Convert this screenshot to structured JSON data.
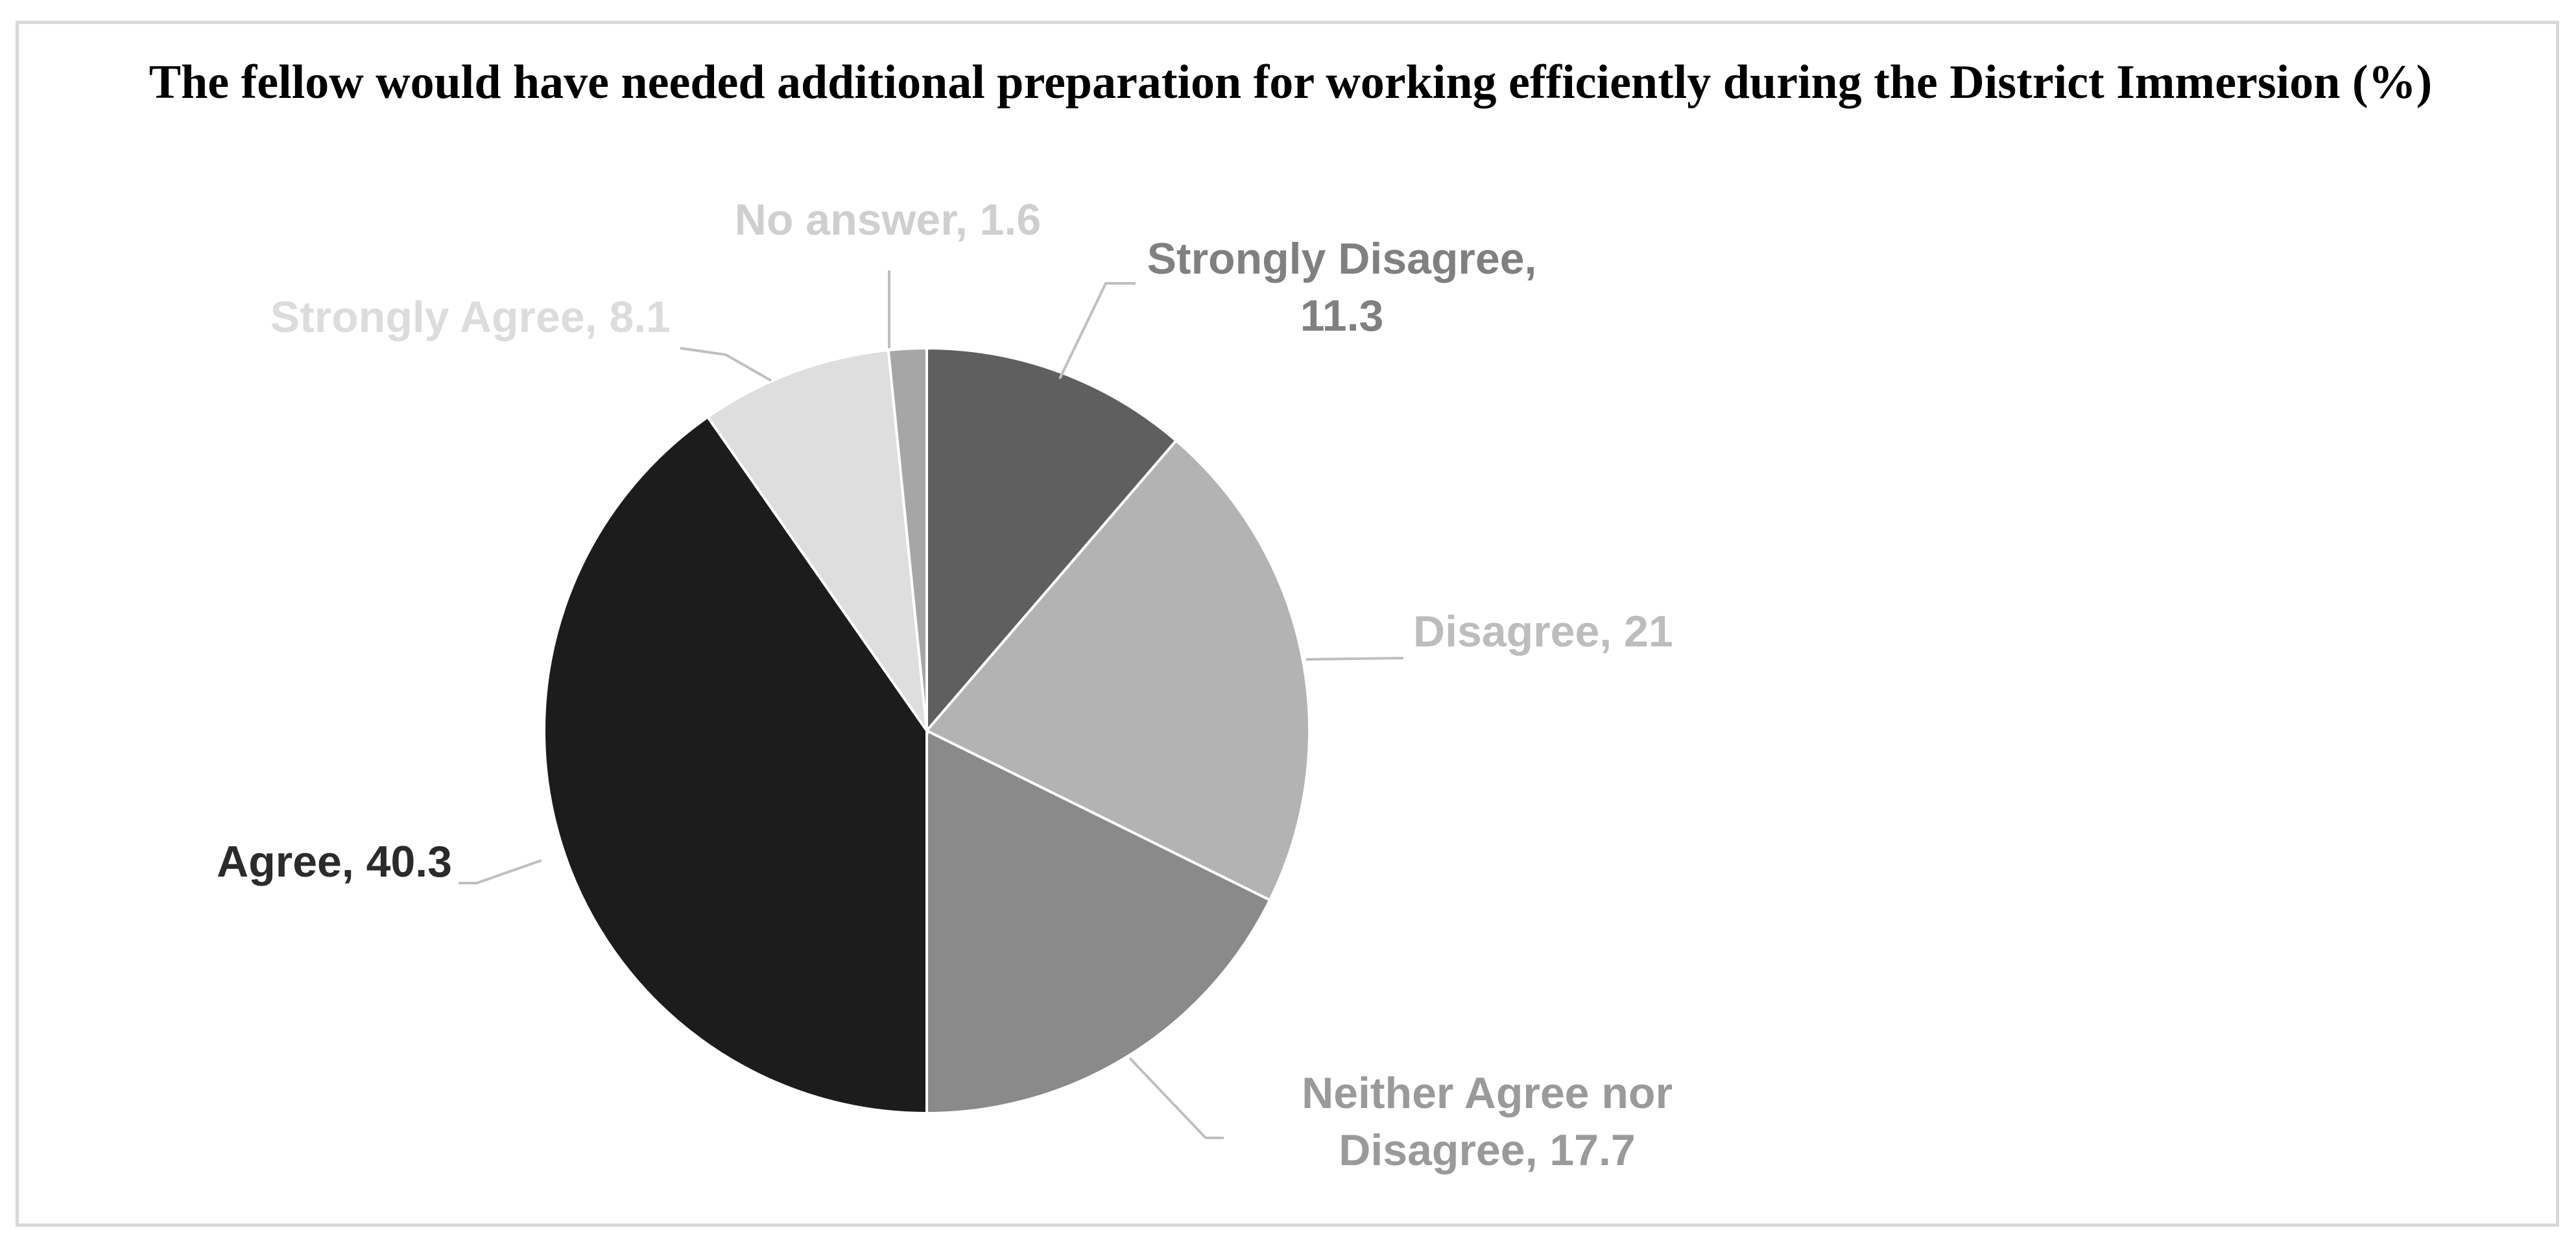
{
  "chart_data": {
    "type": "pie",
    "title": "The fellow would have needed additional preparation for working efficiently during the District Immersion (%)",
    "slices": [
      {
        "label": "Strongly Disagree",
        "value": 11.3,
        "color": "#5f5f5f",
        "label_color": "#808080",
        "data_label_lines": [
          "Strongly Disagree,",
          "11.3"
        ]
      },
      {
        "label": "Disagree",
        "value": 21,
        "color": "#b3b3b3",
        "label_color": "#bdbdbd",
        "data_label_lines": [
          "Disagree, 21"
        ]
      },
      {
        "label": "Neither Agree nor Disagree",
        "value": 17.7,
        "color": "#8a8a8a",
        "label_color": "#9a9a9a",
        "data_label_lines": [
          "Neither Agree nor",
          "Disagree, 17.7"
        ]
      },
      {
        "label": "Agree",
        "value": 40.3,
        "color": "#1c1c1c",
        "label_color": "#2b2b2b",
        "data_label_lines": [
          "Agree, 40.3"
        ]
      },
      {
        "label": "Strongly Agree",
        "value": 8.1,
        "color": "#dedede",
        "label_color": "#dcdcdc",
        "data_label_lines": [
          "Strongly Agree, 8.1"
        ]
      },
      {
        "label": "No answer",
        "value": 1.6,
        "color": "#a6a6a6",
        "label_color": "#cfcfcf",
        "data_label_lines": [
          "No answer, 1.6"
        ]
      }
    ],
    "legend": "none",
    "start_angle": "12 o'clock",
    "direction": "clockwise"
  }
}
